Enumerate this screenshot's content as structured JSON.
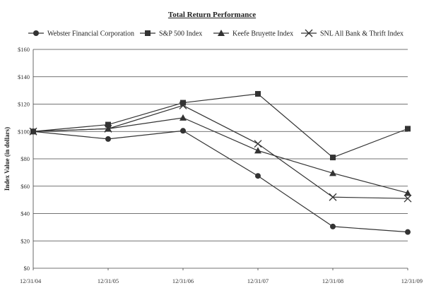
{
  "chart_data": {
    "type": "line",
    "title": "Total Return Performance",
    "ylabel": "Index Value (in dollars)",
    "xlabel": "",
    "categories": [
      "12/31/04",
      "12/31/05",
      "12/31/06",
      "12/31/07",
      "12/31/08",
      "12/31/09"
    ],
    "ylim": [
      0,
      160
    ],
    "yticks": [
      0,
      20,
      40,
      60,
      80,
      100,
      120,
      140,
      160
    ],
    "ytick_labels": [
      "$0",
      "$20",
      "$40",
      "$60",
      "$80",
      "$100",
      "$120",
      "$140",
      "$160"
    ],
    "grid": "horizontal",
    "legend_position": "top",
    "series": [
      {
        "name": "Webster Financial Corporation",
        "marker": "circle",
        "values": [
          100,
          94.5,
          100.5,
          67.5,
          30.5,
          26.5
        ]
      },
      {
        "name": "S&P 500 Index",
        "marker": "square",
        "values": [
          100,
          105,
          121,
          127.5,
          81,
          102
        ]
      },
      {
        "name": "Keefe Bruyette Index",
        "marker": "triangle",
        "values": [
          100,
          102,
          110,
          86,
          69.5,
          55
        ]
      },
      {
        "name": "SNL All Bank & Thrift Index",
        "marker": "x",
        "values": [
          100,
          102,
          119,
          91,
          52,
          51
        ]
      }
    ],
    "colors": {
      "line": "#333333",
      "grid": "#444444",
      "axis": "#444444"
    }
  }
}
